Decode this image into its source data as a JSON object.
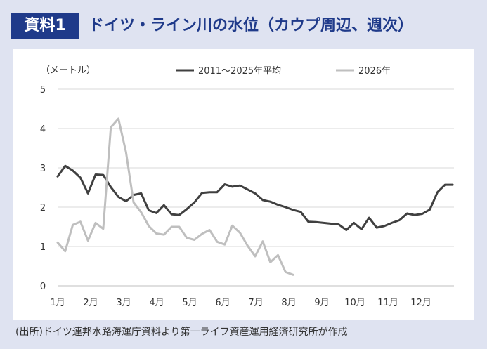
{
  "header": {
    "badge": "資料1",
    "title": "ドイツ・ライン川の水位（カウプ周辺、週次）"
  },
  "source": "(出所)ドイツ連邦水路海運庁資料より第一ライフ資産運用経済研究所が作成",
  "colors": {
    "badge_bg": "#1f3a8a",
    "title_text": "#1f3a8a",
    "series_avg": "#404040",
    "series_2026": "#bfbfbf",
    "grid": "#d9d9d9"
  },
  "chart_data": {
    "type": "line",
    "ylabel": "（メートル）",
    "ylim": [
      0,
      5
    ],
    "yticks": [
      "0",
      "1",
      "2",
      "3",
      "4",
      "5"
    ],
    "xlim": [
      1,
      13
    ],
    "month_labels": [
      "1月",
      "2月",
      "3月",
      "4月",
      "5月",
      "6月",
      "7月",
      "8月",
      "9月",
      "10月",
      "11月",
      "12月"
    ],
    "grid": true,
    "legend_position": "top",
    "series": [
      {
        "name": "2011～2025年平均",
        "color": "#404040",
        "x": [
          1.0,
          1.23,
          1.46,
          1.69,
          1.92,
          2.15,
          2.38,
          2.61,
          2.84,
          3.07,
          3.3,
          3.53,
          3.76,
          3.99,
          4.22,
          4.45,
          4.68,
          4.91,
          5.14,
          5.37,
          5.6,
          5.83,
          6.06,
          6.29,
          6.52,
          6.75,
          6.98,
          7.21,
          7.44,
          7.67,
          7.9,
          8.13,
          8.36,
          8.59,
          8.82,
          9.05,
          9.28,
          9.51,
          9.74,
          9.97,
          10.2,
          10.43,
          10.66,
          10.89,
          11.12,
          11.35,
          11.58,
          11.81,
          12.04,
          12.27,
          12.5,
          12.73,
          12.96
        ],
        "values": [
          2.78,
          3.05,
          2.93,
          2.75,
          2.35,
          2.83,
          2.82,
          2.51,
          2.26,
          2.15,
          2.31,
          2.35,
          1.92,
          1.85,
          2.05,
          1.82,
          1.8,
          1.95,
          2.12,
          2.36,
          2.38,
          2.38,
          2.58,
          2.52,
          2.55,
          2.45,
          2.35,
          2.18,
          2.14,
          2.06,
          2.0,
          1.93,
          1.88,
          1.63,
          1.62,
          1.6,
          1.58,
          1.56,
          1.42,
          1.6,
          1.44,
          1.73,
          1.48,
          1.52,
          1.6,
          1.67,
          1.84,
          1.8,
          1.83,
          1.94,
          2.38,
          2.57,
          2.57
        ]
      },
      {
        "name": "2026年",
        "color": "#bfbfbf",
        "x": [
          1.0,
          1.23,
          1.46,
          1.69,
          1.92,
          2.15,
          2.38,
          2.61,
          2.84,
          3.07,
          3.3,
          3.53,
          3.76,
          3.99,
          4.22,
          4.45,
          4.68,
          4.91,
          5.14,
          5.37,
          5.6,
          5.83,
          6.06,
          6.29,
          6.52,
          6.75,
          6.98,
          7.21,
          7.44,
          7.67,
          7.9,
          8.13
        ],
        "values": [
          1.1,
          0.88,
          1.55,
          1.63,
          1.15,
          1.6,
          1.45,
          4.03,
          4.25,
          3.4,
          2.12,
          1.87,
          1.52,
          1.33,
          1.3,
          1.5,
          1.5,
          1.22,
          1.17,
          1.32,
          1.42,
          1.12,
          1.05,
          1.53,
          1.35,
          1.02,
          0.75,
          1.13,
          0.6,
          0.78,
          0.35,
          0.28
        ]
      }
    ]
  }
}
